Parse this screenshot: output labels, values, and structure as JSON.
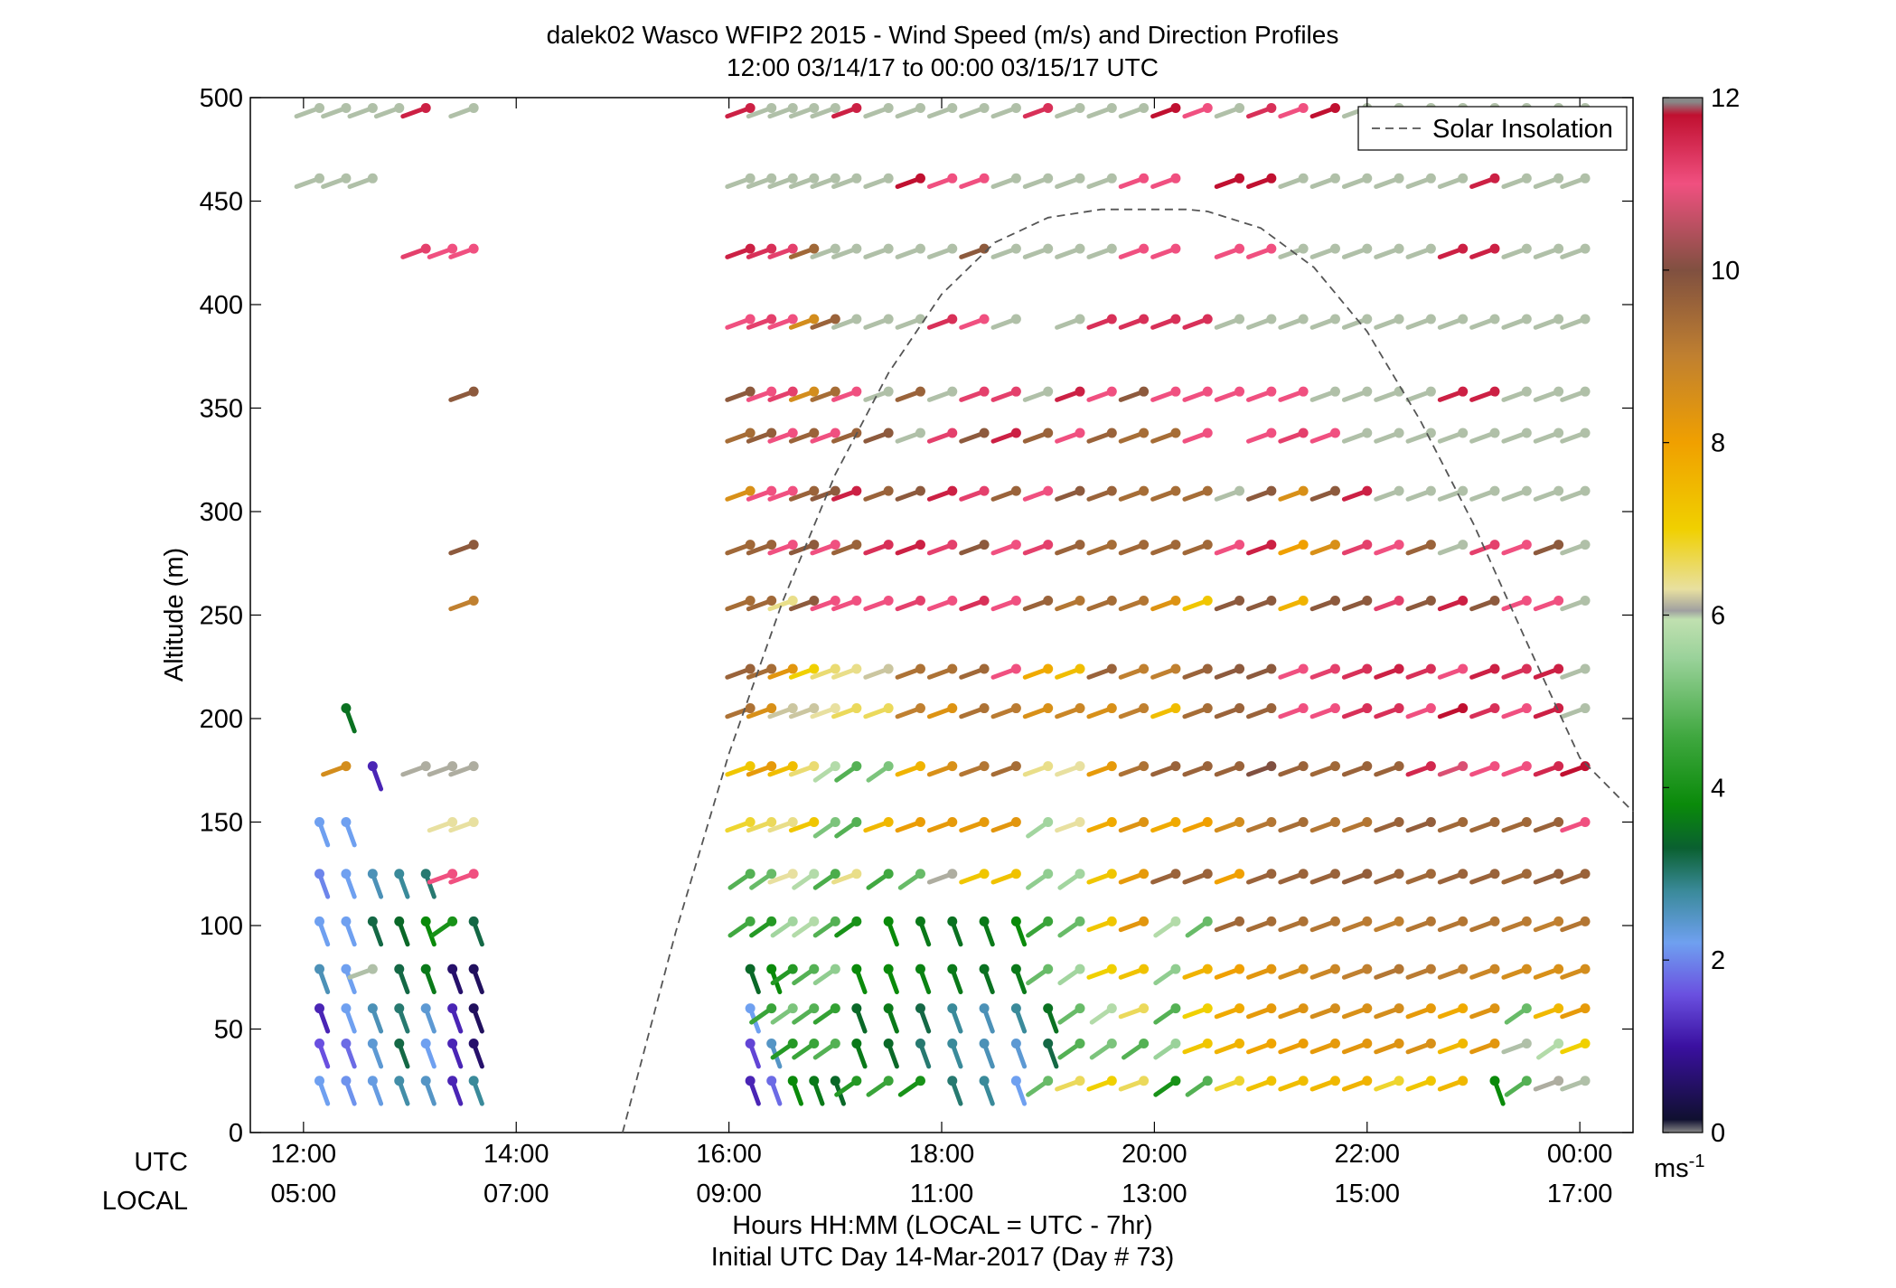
{
  "chart_data": {
    "type": "scatter",
    "title": "dalek02 Wasco WFIP2 2015 - Wind Speed (m/s) and Direction Profiles",
    "subtitle": "12:00 03/14/17 to 00:00 03/15/17  UTC",
    "ylabel": "Altitude (m)",
    "xlabel": "Hours HH:MM  (LOCAL = UTC - 7hr)",
    "xlabel2": "Initial UTC Day 14-Mar-2017 (Day # 73)",
    "row_labels": [
      "UTC",
      "LOCAL"
    ],
    "ylim": [
      0,
      500
    ],
    "xlim": [
      11.5,
      24.5
    ],
    "y_ticks": [
      {
        "value": 0,
        "label": "0"
      },
      {
        "value": 50,
        "label": "50"
      },
      {
        "value": 100,
        "label": "100"
      },
      {
        "value": 150,
        "label": "150"
      },
      {
        "value": 200,
        "label": "200"
      },
      {
        "value": 250,
        "label": "250"
      },
      {
        "value": 300,
        "label": "300"
      },
      {
        "value": 350,
        "label": "350"
      },
      {
        "value": 400,
        "label": "400"
      },
      {
        "value": 450,
        "label": "450"
      },
      {
        "value": 500,
        "label": "500"
      }
    ],
    "x_ticks": [
      {
        "value": 12,
        "utc": "12:00",
        "local": "05:00"
      },
      {
        "value": 14,
        "utc": "14:00",
        "local": "07:00"
      },
      {
        "value": 16,
        "utc": "16:00",
        "local": "09:00"
      },
      {
        "value": 18,
        "utc": "18:00",
        "local": "11:00"
      },
      {
        "value": 20,
        "utc": "20:00",
        "local": "13:00"
      },
      {
        "value": 22,
        "utc": "22:00",
        "local": "15:00"
      },
      {
        "value": 24,
        "utc": "00:00",
        "local": "17:00"
      }
    ],
    "legend": {
      "entry": "Solar Insolation",
      "placement": "top-right"
    },
    "colorbar": {
      "ticks": [
        0,
        2,
        4,
        6,
        8,
        10,
        12
      ],
      "tick_labels": [
        "0",
        "2",
        "4",
        "6",
        "8",
        "10",
        "12"
      ],
      "unit_base": "ms",
      "unit_exp": "-1",
      "range": [
        0,
        12
      ],
      "stops": [
        {
          "v": 0.0,
          "c": "#888888"
        },
        {
          "v": 0.15,
          "c": "#101030"
        },
        {
          "v": 1.0,
          "c": "#3a10a0"
        },
        {
          "v": 1.6,
          "c": "#6a50e0"
        },
        {
          "v": 2.2,
          "c": "#6fa0f0"
        },
        {
          "v": 2.8,
          "c": "#3a8a9a"
        },
        {
          "v": 3.3,
          "c": "#0a6030"
        },
        {
          "v": 3.8,
          "c": "#0a8a0a"
        },
        {
          "v": 4.6,
          "c": "#40a840"
        },
        {
          "v": 5.5,
          "c": "#9ad29a"
        },
        {
          "v": 5.95,
          "c": "#c0e0b0"
        },
        {
          "v": 6.05,
          "c": "#a0a0a0"
        },
        {
          "v": 6.3,
          "c": "#e8e0a0"
        },
        {
          "v": 7.0,
          "c": "#f0d000"
        },
        {
          "v": 8.0,
          "c": "#f0a000"
        },
        {
          "v": 9.0,
          "c": "#c08030"
        },
        {
          "v": 10.0,
          "c": "#805040"
        },
        {
          "v": 11.0,
          "c": "#f05080"
        },
        {
          "v": 11.8,
          "c": "#c01030"
        },
        {
          "v": 11.95,
          "c": "#888888"
        }
      ]
    },
    "solar_insolation": {
      "x": [
        15.0,
        15.5,
        16.0,
        16.5,
        17.0,
        17.5,
        18.0,
        18.5,
        19.0,
        19.5,
        20.0,
        20.3,
        20.5,
        21.0,
        21.5,
        22.0,
        22.5,
        23.0,
        23.5,
        24.0,
        24.5
      ],
      "y": [
        0,
        97,
        183,
        256,
        318,
        367,
        405,
        430,
        442,
        446,
        446,
        446,
        445,
        437,
        418,
        387,
        344,
        294,
        237,
        181,
        155
      ]
    },
    "altitudes": [
      25,
      43,
      60,
      79,
      102,
      125,
      150,
      177,
      205,
      224,
      257,
      284,
      310,
      338,
      358,
      393,
      427,
      461,
      495
    ],
    "times": [
      12.15,
      12.4,
      12.65,
      12.9,
      13.15,
      13.4,
      13.6,
      16.2,
      16.4,
      16.6,
      16.8,
      17.0,
      17.2,
      17.5,
      17.8,
      18.1,
      18.4,
      18.7,
      19.0,
      19.3,
      19.6,
      19.9,
      20.2,
      20.5,
      20.8,
      21.1,
      21.4,
      21.7,
      22.0,
      22.3,
      22.6,
      22.9,
      23.2,
      23.5,
      23.8,
      24.05
    ],
    "speeds": [
      [
        2.2,
        2.1,
        2.3,
        2.7,
        2.5,
        1.2,
        2.8,
        1.2,
        1.8,
        3.8,
        3.6,
        3.4,
        4.2,
        4.5,
        4.0,
        3.0,
        2.8,
        2.2,
        5.0,
        6.6,
        7.0,
        6.6,
        4.0,
        4.8,
        6.8,
        7.3,
        7.4,
        7.5,
        7.6,
        6.8,
        7.2,
        7.5,
        3.8,
        4.8,
        6.1,
        6.0
      ],
      [
        1.6,
        1.8,
        2.4,
        3.2,
        2.2,
        1.2,
        0.6,
        1.5,
        2.5,
        4.2,
        4.5,
        4.8,
        3.6,
        3.4,
        3.0,
        2.8,
        2.6,
        2.4,
        3.2,
        4.8,
        5.2,
        4.8,
        5.5,
        7.2,
        7.6,
        7.9,
        8.1,
        8.2,
        8.3,
        8.4,
        8.5,
        7.5,
        8.3,
        6.0,
        5.8,
        7.0
      ],
      [
        1.2,
        2.2,
        2.6,
        3.0,
        2.4,
        1.2,
        0.5,
        2.2,
        4.5,
        5.2,
        4.8,
        4.4,
        3.4,
        3.6,
        3.2,
        2.8,
        2.6,
        2.8,
        3.5,
        5.0,
        5.8,
        6.6,
        4.8,
        7.0,
        7.8,
        8.2,
        8.4,
        8.6,
        8.5,
        8.6,
        8.2,
        7.8,
        8.4,
        5.0,
        7.5,
        8.2
      ],
      [
        2.6,
        2.2,
        6.0,
        3.2,
        3.6,
        0.6,
        0.5,
        3.4,
        3.8,
        4.2,
        4.8,
        5.4,
        3.8,
        3.8,
        3.7,
        3.6,
        3.5,
        3.6,
        5.0,
        5.6,
        7.0,
        7.3,
        5.4,
        7.6,
        8.0,
        8.3,
        8.6,
        8.8,
        9.0,
        9.2,
        9.1,
        9.0,
        8.8,
        8.6,
        8.5,
        8.6
      ],
      [
        2.2,
        2.2,
        3.2,
        3.4,
        3.8,
        4.0,
        3.2,
        4.6,
        4.2,
        5.6,
        5.8,
        4.8,
        4.0,
        3.8,
        3.6,
        3.5,
        3.6,
        3.8,
        4.5,
        5.0,
        7.2,
        8.3,
        5.8,
        5.0,
        9.5,
        9.4,
        9.3,
        9.2,
        9.1,
        9.0,
        9.2,
        9.2,
        9.2,
        9.1,
        9.0,
        9.2
      ],
      [
        2.0,
        2.2,
        2.6,
        2.8,
        3.0,
        11.0,
        11.0,
        4.8,
        5.0,
        6.3,
        5.8,
        4.7,
        6.4,
        4.6,
        5.0,
        6.1,
        7.2,
        7.3,
        5.4,
        5.6,
        7.2,
        8.2,
        9.6,
        9.6,
        8.0,
        9.6,
        9.6,
        9.6,
        9.7,
        9.6,
        9.5,
        9.6,
        9.6,
        9.5,
        9.7,
        9.6
      ],
      [
        2.2,
        2.2,
        null,
        null,
        null,
        6.3,
        6.3,
        6.8,
        6.6,
        6.4,
        7.2,
        5.2,
        4.8,
        7.5,
        8.1,
        8.2,
        8.2,
        8.3,
        5.6,
        6.3,
        7.8,
        8.4,
        7.8,
        8.0,
        8.6,
        9.2,
        9.4,
        9.2,
        9.2,
        9.6,
        9.7,
        9.5,
        9.5,
        9.5,
        9.6,
        11.0
      ],
      [
        null,
        8.6,
        1.2,
        null,
        6.1,
        6.1,
        6.1,
        7.2,
        8.2,
        7.4,
        6.5,
        5.8,
        4.8,
        5.2,
        7.6,
        8.5,
        9.2,
        9.4,
        6.4,
        6.3,
        8.2,
        9.3,
        9.6,
        9.6,
        9.6,
        10.0,
        9.6,
        9.5,
        9.6,
        9.6,
        11.5,
        10.8,
        11.0,
        11.0,
        11.5,
        11.8
      ],
      [
        null,
        3.5,
        null,
        null,
        null,
        null,
        null,
        9.3,
        8.5,
        6.2,
        6.2,
        6.3,
        6.6,
        6.6,
        9.0,
        8.4,
        9.3,
        9.1,
        8.5,
        8.8,
        8.5,
        9.0,
        7.4,
        9.4,
        9.6,
        9.6,
        11.0,
        11.0,
        11.4,
        11.4,
        11.0,
        11.8,
        11.4,
        11.0,
        11.6,
        6.0
      ],
      [
        null,
        null,
        null,
        null,
        null,
        null,
        null,
        9.6,
        9.4,
        8.3,
        7.0,
        6.5,
        6.4,
        6.2,
        9.3,
        9.3,
        9.5,
        11.0,
        7.8,
        7.4,
        9.6,
        9.0,
        9.0,
        9.6,
        9.8,
        9.8,
        11.0,
        11.2,
        11.4,
        11.6,
        11.4,
        11.0,
        11.6,
        11.4,
        11.6,
        6.0
      ],
      [
        null,
        null,
        null,
        null,
        null,
        null,
        9.0,
        9.4,
        9.5,
        6.4,
        9.8,
        11.0,
        11.0,
        11.0,
        11.2,
        11.0,
        11.4,
        11.0,
        9.6,
        9.2,
        9.4,
        9.2,
        8.4,
        7.2,
        9.8,
        9.8,
        7.6,
        9.8,
        9.8,
        11.2,
        9.8,
        11.6,
        9.8,
        11.0,
        11.0,
        6.0
      ],
      [
        null,
        null,
        null,
        null,
        null,
        null,
        9.8,
        9.5,
        9.6,
        11.0,
        9.8,
        11.0,
        9.6,
        11.4,
        11.6,
        11.2,
        9.8,
        11.0,
        11.2,
        9.6,
        9.4,
        9.5,
        9.5,
        9.5,
        11.0,
        11.6,
        8.0,
        8.5,
        11.2,
        11.0,
        9.6,
        6.0,
        11.2,
        11.0,
        9.8,
        6.0
      ],
      [
        null,
        null,
        null,
        null,
        null,
        null,
        null,
        8.5,
        11.0,
        11.0,
        9.6,
        9.8,
        11.6,
        9.6,
        9.8,
        11.6,
        11.2,
        9.6,
        11.0,
        9.8,
        9.6,
        9.4,
        9.4,
        9.4,
        6.0,
        9.8,
        8.5,
        9.8,
        11.6,
        6.0,
        6.0,
        6.0,
        6.0,
        6.0,
        6.0,
        6.0
      ],
      [
        null,
        null,
        null,
        null,
        null,
        null,
        null,
        9.4,
        9.7,
        11.0,
        9.6,
        11.0,
        9.6,
        9.8,
        6.0,
        11.2,
        9.8,
        11.6,
        9.6,
        11.0,
        9.6,
        9.4,
        9.4,
        11.0,
        null,
        11.0,
        11.2,
        11.0,
        6.0,
        6.0,
        6.0,
        6.0,
        6.0,
        6.0,
        6.0,
        6.0
      ],
      [
        null,
        null,
        null,
        null,
        null,
        null,
        9.8,
        9.8,
        11.0,
        11.2,
        8.6,
        9.4,
        11.0,
        6.0,
        9.6,
        6.0,
        11.2,
        11.2,
        6.0,
        11.6,
        11.0,
        9.8,
        11.0,
        11.0,
        11.0,
        11.0,
        11.0,
        6.0,
        6.0,
        6.0,
        6.0,
        11.6,
        11.6,
        6.0,
        6.0,
        6.0
      ],
      [
        null,
        null,
        null,
        null,
        null,
        null,
        null,
        11.0,
        11.2,
        11.0,
        8.6,
        9.6,
        6.0,
        6.0,
        6.0,
        11.4,
        11.0,
        6.0,
        null,
        6.0,
        11.4,
        11.4,
        11.4,
        11.4,
        6.0,
        6.0,
        6.0,
        6.0,
        6.0,
        6.0,
        6.0,
        6.0,
        6.0,
        6.0,
        6.0,
        6.0
      ],
      [
        null,
        null,
        null,
        null,
        11.2,
        11.0,
        11.0,
        11.6,
        11.4,
        11.2,
        9.5,
        6.0,
        6.0,
        6.0,
        6.0,
        6.0,
        9.8,
        6.0,
        6.0,
        6.0,
        6.0,
        11.0,
        11.0,
        null,
        11.0,
        11.0,
        6.0,
        6.0,
        6.0,
        6.0,
        6.0,
        11.6,
        11.6,
        6.0,
        6.0,
        6.0
      ],
      [
        6.0,
        6.0,
        6.0,
        null,
        null,
        null,
        null,
        6.0,
        6.0,
        6.0,
        6.0,
        6.0,
        6.0,
        6.0,
        11.8,
        11.0,
        11.0,
        6.0,
        6.0,
        6.0,
        6.0,
        11.0,
        11.0,
        null,
        11.8,
        11.8,
        6.0,
        6.0,
        6.0,
        6.0,
        6.0,
        6.0,
        11.6,
        6.0,
        6.0,
        6.0
      ],
      [
        6.0,
        6.0,
        6.0,
        6.0,
        11.6,
        null,
        6.0,
        11.6,
        6.0,
        6.0,
        6.0,
        6.0,
        11.6,
        6.0,
        6.0,
        6.0,
        6.0,
        6.0,
        11.4,
        6.0,
        6.0,
        6.0,
        11.8,
        11.0,
        6.0,
        11.4,
        11.0,
        11.8,
        6.0,
        6.0,
        6.0,
        6.0,
        6.0,
        6.0,
        6.0,
        6.0
      ]
    ]
  }
}
